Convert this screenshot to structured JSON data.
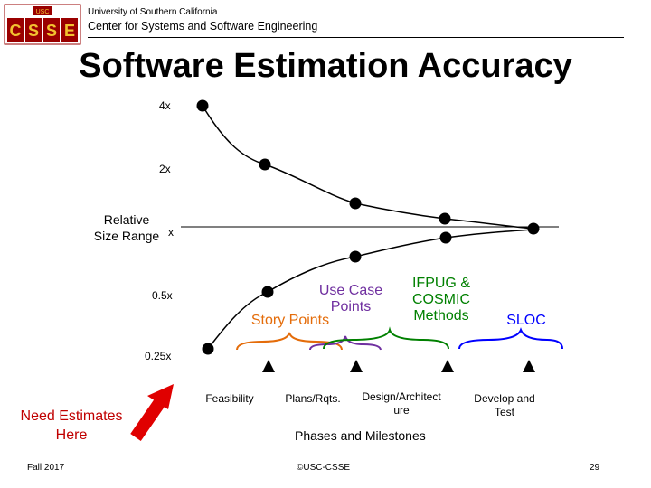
{
  "header": {
    "university": "University of Southern California",
    "center": "Center for Systems and Software Engineering",
    "logo": {
      "badge": "USC",
      "letters": [
        "C",
        "S",
        "S",
        "E"
      ],
      "color": "#9a0000",
      "gold": "#f2c230"
    }
  },
  "title": "Software Estimation Accuracy",
  "y_axis": {
    "label": "Relative Size Range",
    "ticks": [
      {
        "label": "4x",
        "value": 4
      },
      {
        "label": "2x",
        "value": 2
      },
      {
        "label": "x",
        "value": 1
      },
      {
        "label": "0.5x",
        "value": 0.5
      },
      {
        "label": "0.25x",
        "value": 0.25
      }
    ]
  },
  "upper_curve": [
    4,
    2,
    1.5,
    1.25,
    1.0
  ],
  "lower_curve": [
    0.25,
    0.5,
    0.67,
    0.8,
    1.0
  ],
  "sizing_methods": [
    {
      "label": "Story Points",
      "color": "#e46c0a"
    },
    {
      "label": "Use Case Points",
      "color": "#7030a0"
    },
    {
      "label": "IFPUG & COSMIC Methods",
      "color": "#008000"
    },
    {
      "label": "SLOC",
      "color": "#0000ff"
    }
  ],
  "milestones": [
    "Feasibility",
    "Plans/Rqts.",
    "Design/Architecture",
    "Develop and Test"
  ],
  "phases_title": "Phases and Milestones",
  "need_estimates": "Need Estimates Here",
  "arrow_color": "#e00000",
  "footer": {
    "left": "Fall 2017",
    "center": "©USC-CSSE",
    "page": "29"
  }
}
